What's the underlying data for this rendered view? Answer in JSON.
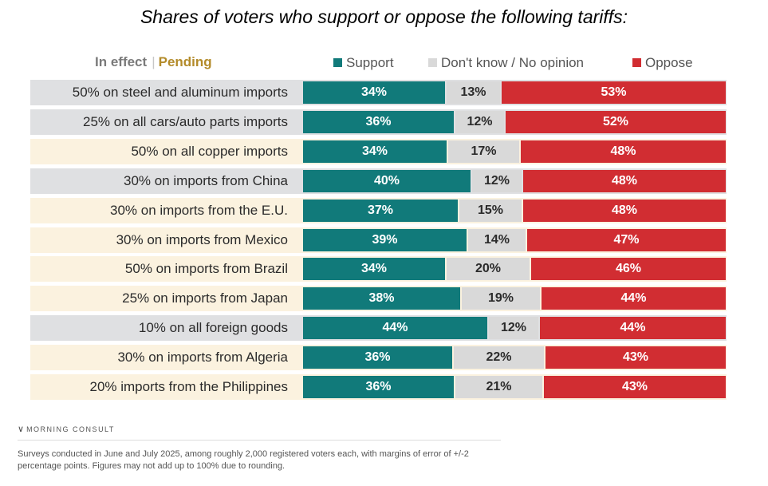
{
  "chart_data": {
    "type": "bar",
    "subtype": "stacked-horizontal-100",
    "title": "Shares of voters who support or oppose the following tariffs:",
    "groups": {
      "in_effect": "In effect",
      "separator": "|",
      "pending": "Pending"
    },
    "legend": [
      "Support",
      "Don't know / No opinion",
      "Oppose"
    ],
    "categories": [
      "50% on steel and aluminum imports",
      "25% on all cars/auto parts imports",
      "50% on all copper imports",
      "30% on imports from China",
      "30% on imports from the E.U.",
      "30% on imports from Mexico",
      "50% on imports from Brazil",
      "25% on imports from Japan",
      "10% on all foreign goods",
      "30% on imports from Algeria",
      "20% imports from the Philippines"
    ],
    "status": [
      "In effect",
      "In effect",
      "Pending",
      "In effect",
      "Pending",
      "Pending",
      "Pending",
      "Pending",
      "In effect",
      "Pending",
      "Pending"
    ],
    "series": [
      {
        "name": "Support",
        "values": [
          34,
          36,
          34,
          40,
          37,
          39,
          34,
          38,
          44,
          36,
          36
        ]
      },
      {
        "name": "Don't know / No opinion",
        "values": [
          13,
          12,
          17,
          12,
          15,
          14,
          20,
          19,
          12,
          22,
          21
        ]
      },
      {
        "name": "Oppose",
        "values": [
          53,
          52,
          48,
          48,
          48,
          47,
          46,
          44,
          44,
          43,
          43
        ]
      }
    ],
    "unit": "%",
    "xlim": [
      0,
      100
    ]
  },
  "colors": {
    "support": "#117a7a",
    "dont_know": "#d9d9d9",
    "oppose": "#d12d32",
    "in_effect_bg": "#dfe0e2",
    "pending_bg": "#fbf2df"
  },
  "footer": {
    "brand": "MORNING CONSULT",
    "note": "Surveys conducted in June and July 2025, among roughly 2,000 registered voters each, with margins of error of +/-2 percentage points. Figures may not add up to 100% due to rounding."
  }
}
